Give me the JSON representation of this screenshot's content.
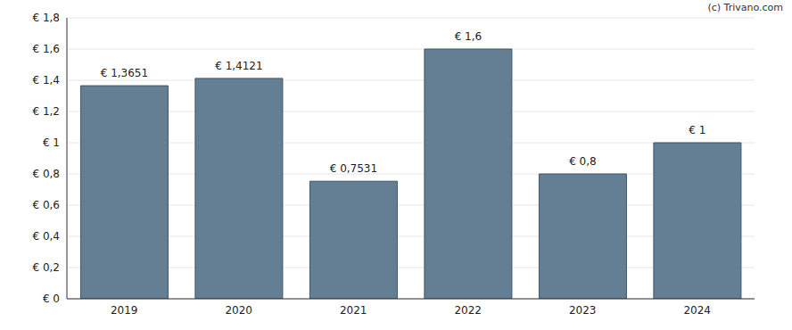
{
  "chart_data": {
    "type": "bar",
    "annotations": [
      "(c) Trivano.com"
    ],
    "categories": [
      "2019",
      "2020",
      "2021",
      "2022",
      "2023",
      "2024"
    ],
    "values": [
      1.3651,
      1.4121,
      0.7531,
      1.6,
      0.8,
      1
    ],
    "value_labels": [
      "€ 1,3651",
      "€ 1,4121",
      "€ 0,7531",
      "€ 1,6",
      "€ 0,8",
      "€ 1"
    ],
    "data_labels": true,
    "color": "#647f94",
    "ylim": [
      0,
      1.8
    ],
    "yticks": [
      {
        "value": 0,
        "label": "€ 0"
      },
      {
        "value": 0.2,
        "label": "€ 0,2"
      },
      {
        "value": 0.4,
        "label": "€ 0,4"
      },
      {
        "value": 0.6,
        "label": "€ 0,6"
      },
      {
        "value": 0.8,
        "label": "€ 0,8"
      },
      {
        "value": 1,
        "label": "€ 1"
      },
      {
        "value": 1.2,
        "label": "€ 1,2"
      },
      {
        "value": 1.4,
        "label": "€ 1,4"
      },
      {
        "value": 1.6,
        "label": "€ 1,6"
      },
      {
        "value": 1.8,
        "label": "€ 1,8"
      }
    ],
    "grid": true
  }
}
